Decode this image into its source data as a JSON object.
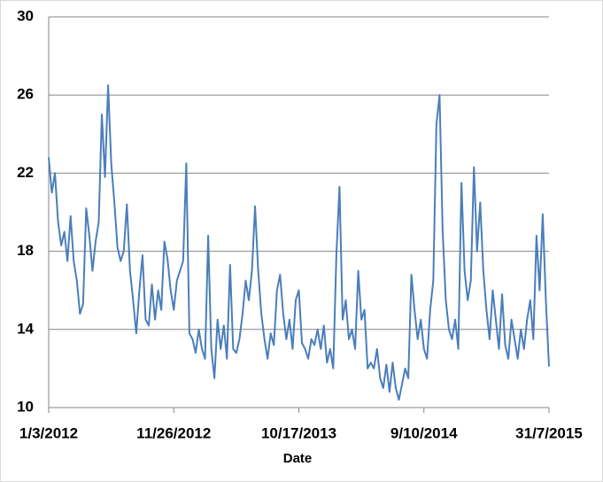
{
  "chart_data": {
    "type": "line",
    "x_label": "Date",
    "categories": [
      "1/3/2012",
      null,
      null,
      null,
      null,
      null,
      null,
      null,
      null,
      null,
      null,
      null,
      null,
      null,
      null,
      null,
      null,
      null,
      null,
      null,
      null,
      null,
      null,
      null,
      null,
      null,
      null,
      null,
      null,
      null,
      null,
      null,
      null,
      null,
      null,
      null,
      null,
      null,
      null,
      null,
      "11/26/2012",
      null,
      null,
      null,
      null,
      null,
      null,
      null,
      null,
      null,
      null,
      null,
      null,
      null,
      null,
      null,
      null,
      null,
      null,
      null,
      null,
      null,
      null,
      null,
      null,
      null,
      null,
      null,
      null,
      null,
      null,
      null,
      null,
      null,
      null,
      null,
      null,
      null,
      null,
      null,
      "10/17/2013",
      null,
      null,
      null,
      null,
      null,
      null,
      null,
      null,
      null,
      null,
      null,
      null,
      null,
      null,
      null,
      null,
      null,
      null,
      null,
      null,
      null,
      null,
      null,
      null,
      null,
      null,
      null,
      null,
      null,
      null,
      null,
      null,
      null,
      null,
      null,
      null,
      null,
      null,
      null,
      "9/10/2014",
      null,
      null,
      null,
      null,
      null,
      null,
      null,
      null,
      null,
      null,
      null,
      null,
      null,
      null,
      null,
      null,
      null,
      null,
      null,
      null,
      null,
      null,
      null,
      null,
      null,
      null,
      null,
      null,
      null,
      null,
      null,
      null,
      null,
      null,
      null,
      null,
      null,
      null,
      null,
      "31/7/2015"
    ],
    "series": [
      {
        "color": "#4a7ebb",
        "values": [
          22.8,
          21.0,
          22.0,
          19.5,
          18.3,
          19.0,
          17.5,
          19.8,
          17.5,
          16.5,
          14.8,
          15.3,
          20.2,
          18.8,
          17.0,
          18.5,
          19.5,
          25.0,
          21.8,
          26.5,
          22.5,
          20.5,
          18.2,
          17.5,
          18.0,
          20.4,
          17.0,
          15.5,
          13.8,
          16.0,
          17.8,
          14.5,
          14.2,
          16.3,
          14.5,
          16.0,
          15.0,
          18.5,
          17.6,
          16.0,
          15.0,
          16.5,
          17.0,
          17.5,
          22.5,
          13.8,
          13.5,
          12.8,
          14.0,
          13.0,
          12.5,
          18.8,
          13.0,
          11.5,
          14.5,
          13.0,
          14.2,
          12.5,
          17.3,
          13.0,
          12.8,
          13.5,
          14.8,
          16.5,
          15.5,
          17.0,
          20.3,
          17.0,
          14.8,
          13.5,
          12.5,
          13.8,
          13.2,
          16.0,
          16.8,
          14.8,
          13.5,
          14.5,
          13.0,
          15.5,
          16.0,
          13.3,
          13.0,
          12.5,
          13.5,
          13.2,
          14.0,
          13.0,
          14.2,
          12.3,
          13.0,
          12.0,
          17.8,
          21.3,
          14.5,
          15.5,
          13.5,
          14.0,
          13.0,
          17.0,
          14.5,
          15.0,
          12.0,
          12.3,
          12.0,
          13.0,
          11.5,
          11.0,
          12.2,
          10.8,
          12.3,
          11.0,
          10.4,
          11.2,
          12.0,
          11.5,
          16.8,
          15.0,
          13.5,
          14.5,
          13.0,
          12.5,
          15.0,
          16.5,
          24.5,
          26.0,
          19.0,
          15.5,
          14.0,
          13.5,
          14.5,
          13.0,
          21.5,
          17.0,
          15.5,
          16.5,
          22.3,
          18.0,
          20.5,
          17.0,
          15.0,
          13.5,
          16.0,
          14.5,
          13.0,
          15.8,
          13.2,
          12.5,
          14.5,
          13.5,
          12.5,
          14.0,
          13.0,
          14.5,
          15.5,
          13.5,
          18.8,
          16.0,
          19.9,
          15.5,
          12.1
        ]
      }
    ],
    "ylim": [
      10,
      30
    ],
    "yticks": [
      10,
      14,
      18,
      22,
      26,
      30
    ],
    "grid": true
  }
}
